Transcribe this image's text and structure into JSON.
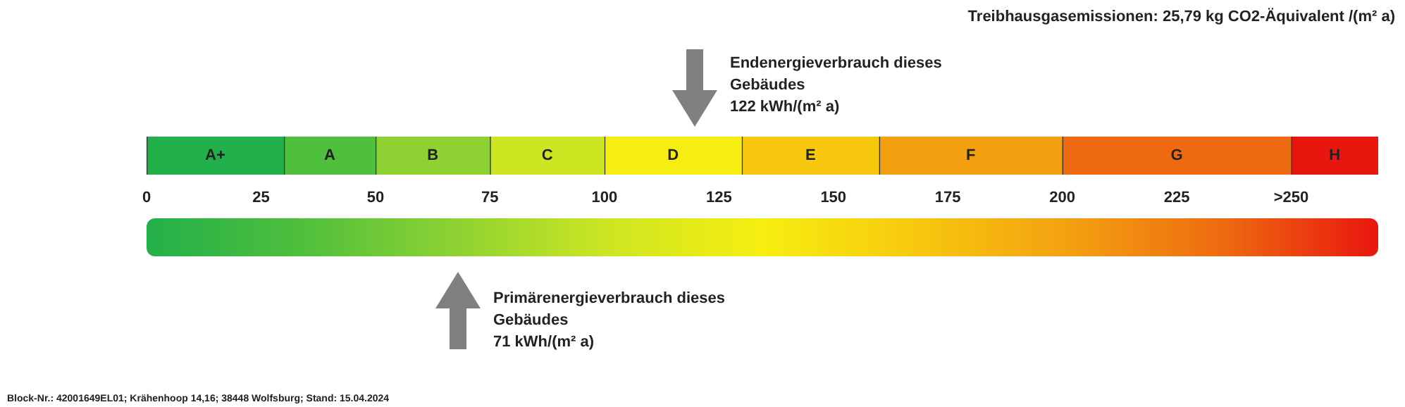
{
  "chart_data": {
    "type": "bar",
    "orientation": "horizontal",
    "stacked": true,
    "categories": [
      null
    ],
    "series": [
      {
        "name": "A+",
        "color": "#22b04a",
        "values": [
          30
        ]
      },
      {
        "name": "A",
        "color": "#4fbf3c",
        "values": [
          20
        ]
      },
      {
        "name": "B",
        "color": "#8dd232",
        "values": [
          25
        ]
      },
      {
        "name": "C",
        "color": "#cde622",
        "values": [
          25
        ]
      },
      {
        "name": "D",
        "color": "#f6ee10",
        "values": [
          30
        ]
      },
      {
        "name": "E",
        "color": "#f7c80e",
        "values": [
          30
        ]
      },
      {
        "name": "F",
        "color": "#f3a010",
        "values": [
          40
        ]
      },
      {
        "name": "G",
        "color": "#ee6a10",
        "values": [
          50
        ]
      },
      {
        "name": "H",
        "color": "#e8160f",
        "values": [
          19
        ]
      }
    ],
    "xlim": [
      0,
      269
    ],
    "xticks": [
      0,
      25,
      50,
      75,
      100,
      125,
      150,
      175,
      200,
      225,
      {
        "value": 250,
        "label": ">250"
      }
    ],
    "annotations": [
      "Treibhausgasemissionen: 25,79 kg CO2-Äquivalent /(m² a)",
      "Block-Nr.: 42001649EL01; Krähenhoop 14,16; 38448 Wolfsburg; Stand: 15.04.2024",
      "Endenergieverbrauch dieses\nGebäudes\n122 kWh/(m² a)",
      "Primärenergieverbrauch dieses\nGebäudes\n71 kWh/(m² a)"
    ]
  }
}
